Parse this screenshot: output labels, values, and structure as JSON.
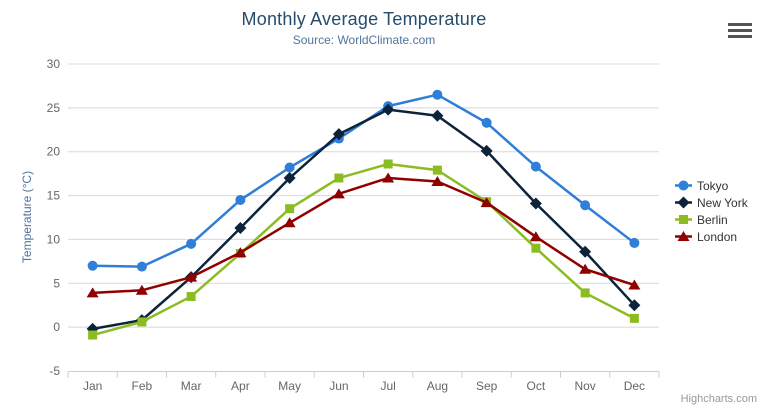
{
  "chart_data": {
    "type": "line",
    "title": "Monthly Average Temperature",
    "subtitle": "Source: WorldClimate.com",
    "xlabel": "",
    "ylabel": "Temperature (°C)",
    "ylim": [
      -5,
      30
    ],
    "y_ticks": [
      -5,
      0,
      5,
      10,
      15,
      20,
      25,
      30
    ],
    "grid": true,
    "legend_position": "right",
    "categories": [
      "Jan",
      "Feb",
      "Mar",
      "Apr",
      "May",
      "Jun",
      "Jul",
      "Aug",
      "Sep",
      "Oct",
      "Nov",
      "Dec"
    ],
    "series": [
      {
        "name": "Tokyo",
        "color": "#2f7ed8",
        "marker": "circle",
        "values": [
          7.0,
          6.9,
          9.5,
          14.5,
          18.2,
          21.5,
          25.2,
          26.5,
          23.3,
          18.3,
          13.9,
          9.6
        ]
      },
      {
        "name": "New York",
        "color": "#0d233a",
        "marker": "diamond",
        "values": [
          -0.2,
          0.8,
          5.7,
          11.3,
          17.0,
          22.0,
          24.8,
          24.1,
          20.1,
          14.1,
          8.6,
          2.5
        ]
      },
      {
        "name": "Berlin",
        "color": "#8bbc21",
        "marker": "square",
        "values": [
          -0.9,
          0.6,
          3.5,
          8.4,
          13.5,
          17.0,
          18.6,
          17.9,
          14.3,
          9.0,
          3.9,
          1.0
        ]
      },
      {
        "name": "London",
        "color": "#910000",
        "marker": "triangle",
        "values": [
          3.9,
          4.2,
          5.7,
          8.5,
          11.9,
          15.2,
          17.0,
          16.6,
          14.2,
          10.3,
          6.6,
          4.8
        ]
      }
    ]
  },
  "credits": {
    "label": "Highcharts.com"
  },
  "export_menu": {
    "icon": "hamburger-menu-icon"
  },
  "colors": {
    "title_color": "#274b6d",
    "subtitle_color": "#4d759e",
    "axis_label_color": "#666666",
    "grid_color": "#d8d8d8",
    "axis_line_color": "#c0d0e0",
    "legend_text_color": "#333333",
    "credits_color": "#999999",
    "export_icon_color": "#555555"
  }
}
